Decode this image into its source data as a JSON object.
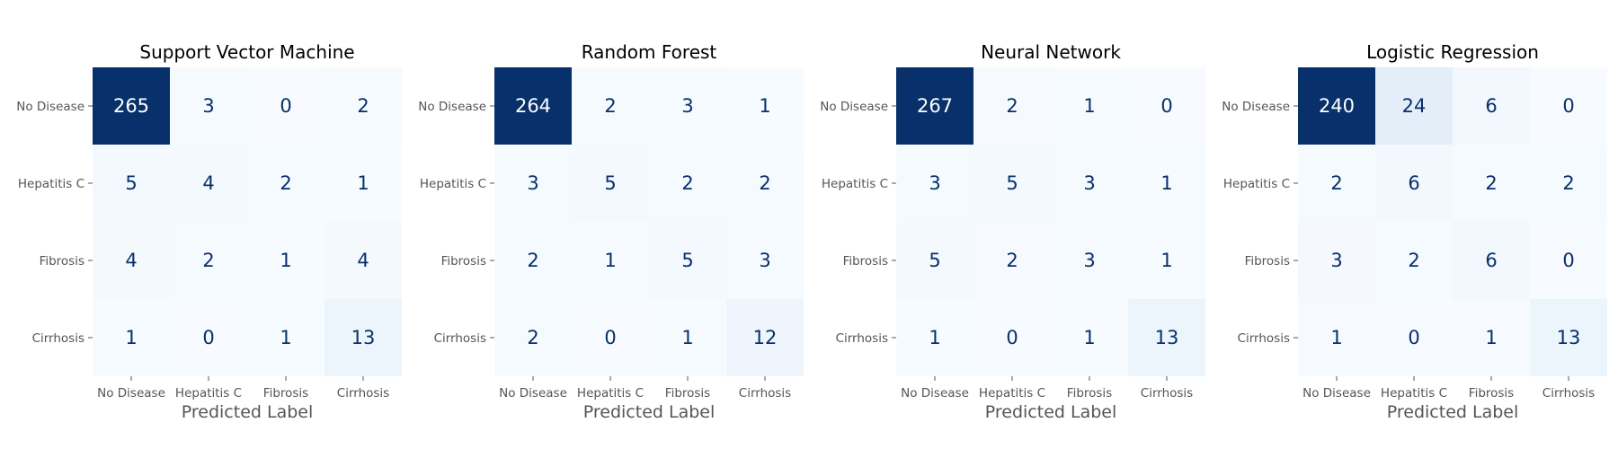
{
  "chart_data": [
    {
      "type": "heatmap",
      "title": "Support Vector Machine",
      "xlabel": "Predicted Label",
      "ylabel": "",
      "x_categories": [
        "No Disease",
        "Hepatitis C",
        "Fibrosis",
        "Cirrhosis"
      ],
      "y_categories": [
        "No Disease",
        "Hepatitis C",
        "Fibrosis",
        "Cirrhosis"
      ],
      "matrix": [
        [
          265,
          3,
          0,
          2
        ],
        [
          5,
          4,
          2,
          1
        ],
        [
          4,
          2,
          1,
          4
        ],
        [
          1,
          0,
          1,
          13
        ]
      ],
      "colormap": "Blues",
      "colorbar": false
    },
    {
      "type": "heatmap",
      "title": "Random Forest",
      "xlabel": "Predicted Label",
      "ylabel": "",
      "x_categories": [
        "No Disease",
        "Hepatitis C",
        "Fibrosis",
        "Cirrhosis"
      ],
      "y_categories": [
        "No Disease",
        "Hepatitis C",
        "Fibrosis",
        "Cirrhosis"
      ],
      "matrix": [
        [
          264,
          2,
          3,
          1
        ],
        [
          3,
          5,
          2,
          2
        ],
        [
          2,
          1,
          5,
          3
        ],
        [
          2,
          0,
          1,
          12
        ]
      ],
      "colormap": "Blues",
      "colorbar": false
    },
    {
      "type": "heatmap",
      "title": "Neural Network",
      "xlabel": "Predicted Label",
      "ylabel": "",
      "x_categories": [
        "No Disease",
        "Hepatitis C",
        "Fibrosis",
        "Cirrhosis"
      ],
      "y_categories": [
        "No Disease",
        "Hepatitis C",
        "Fibrosis",
        "Cirrhosis"
      ],
      "matrix": [
        [
          267,
          2,
          1,
          0
        ],
        [
          3,
          5,
          3,
          1
        ],
        [
          5,
          2,
          3,
          1
        ],
        [
          1,
          0,
          1,
          13
        ]
      ],
      "colormap": "Blues",
      "colorbar": false
    },
    {
      "type": "heatmap",
      "title": "Logistic Regression",
      "xlabel": "Predicted Label",
      "ylabel": "",
      "x_categories": [
        "No Disease",
        "Hepatitis C",
        "Fibrosis",
        "Cirrhosis"
      ],
      "y_categories": [
        "No Disease",
        "Hepatitis C",
        "Fibrosis",
        "Cirrhosis"
      ],
      "matrix": [
        [
          240,
          24,
          6,
          0
        ],
        [
          2,
          6,
          2,
          2
        ],
        [
          3,
          2,
          6,
          0
        ],
        [
          1,
          0,
          1,
          13
        ]
      ],
      "colormap": "Blues",
      "colorbar": false
    }
  ],
  "colors": {
    "scale_low": "#f7fbff",
    "scale_high": "#08306b",
    "text_dark": "#08306b",
    "text_light": "#ffffff"
  }
}
